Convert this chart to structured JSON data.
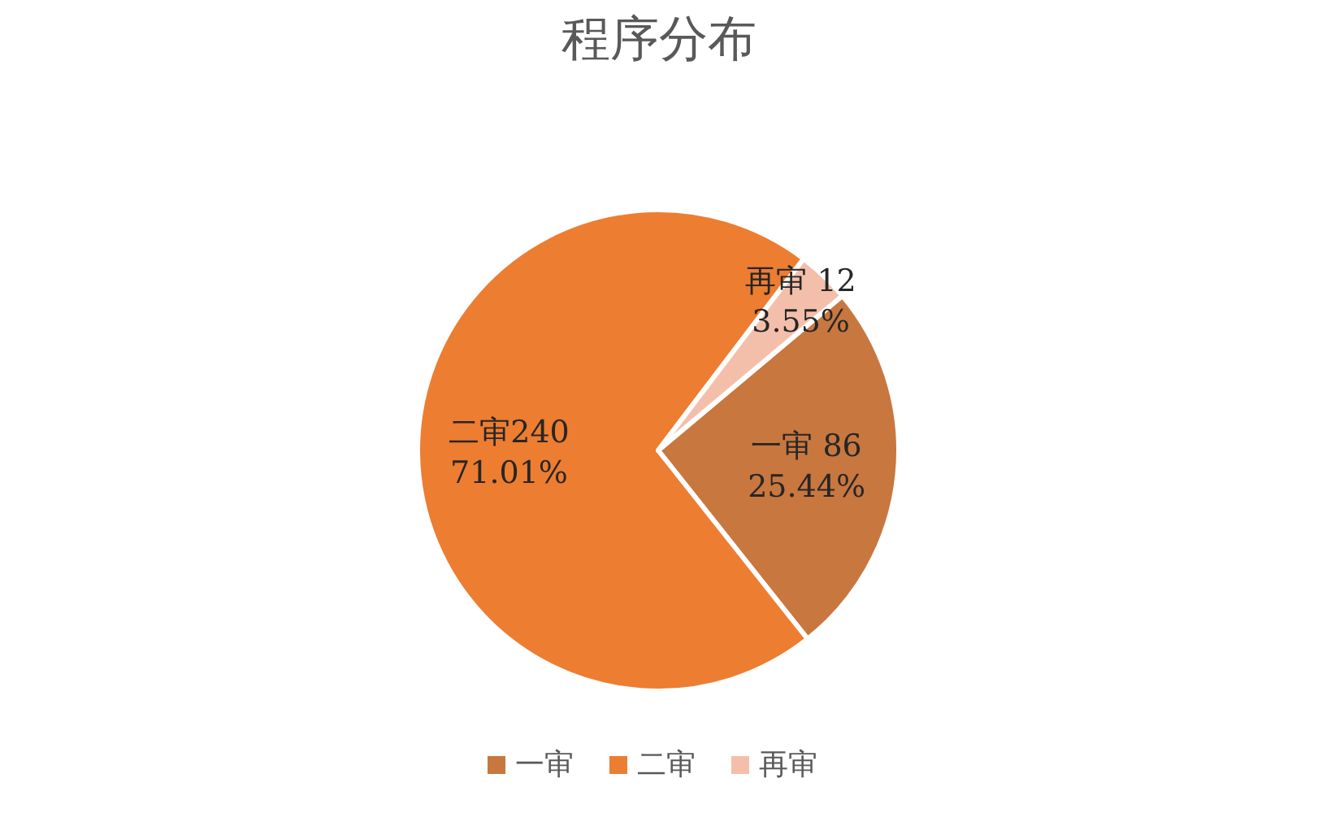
{
  "chart_data": {
    "type": "pie",
    "title": "程序分布",
    "categories": [
      "一审",
      "二审",
      "再审"
    ],
    "values": [
      86,
      240,
      12
    ],
    "colors": [
      "#c8773f",
      "#ed7d31",
      "#f4bfaa"
    ],
    "value_labels": [
      "一审 86\n25.44%",
      "二审240\n71.01%",
      "再审 12\n3.55%"
    ],
    "legend": "bottom"
  }
}
